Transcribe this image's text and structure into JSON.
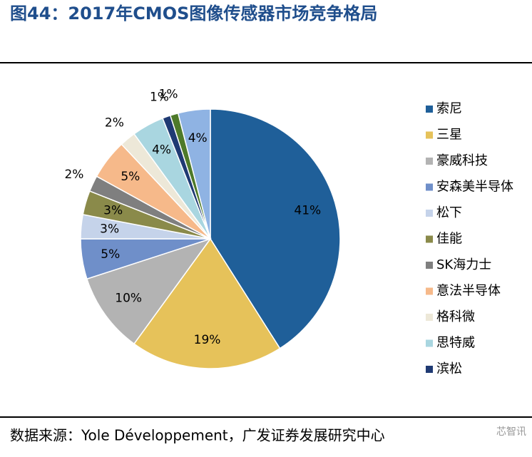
{
  "chart_data": {
    "type": "pie",
    "title": "图44：2017年CMOS图像传感器市场竞争格局",
    "categories": [
      "索尼",
      "三星",
      "豪威科技",
      "安森美半导体",
      "松下",
      "佳能",
      "SK海力士",
      "意法半导体",
      "格科微",
      "思特威",
      "滨松",
      null,
      null
    ],
    "values": [
      41,
      19,
      10,
      5,
      3,
      3,
      2,
      5,
      2,
      4,
      1,
      1,
      4
    ],
    "value_labels": [
      "41%",
      "19%",
      "10%",
      "5%",
      "3%",
      "3%",
      "2%",
      "5%",
      "2%",
      "4%",
      "1%",
      "1%",
      "4%"
    ],
    "colors": [
      "#1f5f99",
      "#e6c25a",
      "#b3b3b3",
      "#6f8fc9",
      "#c5d3ea",
      "#8a8a4a",
      "#7f7f7f",
      "#f6b98a",
      "#ede8d8",
      "#a9d6e0",
      "#1f3a73",
      "#4e7a2a",
      "#8fb3e3"
    ],
    "legend": "right",
    "source": "数据来源：Yole Développement，广发证券发展研究中心",
    "watermark": "芯智讯"
  }
}
